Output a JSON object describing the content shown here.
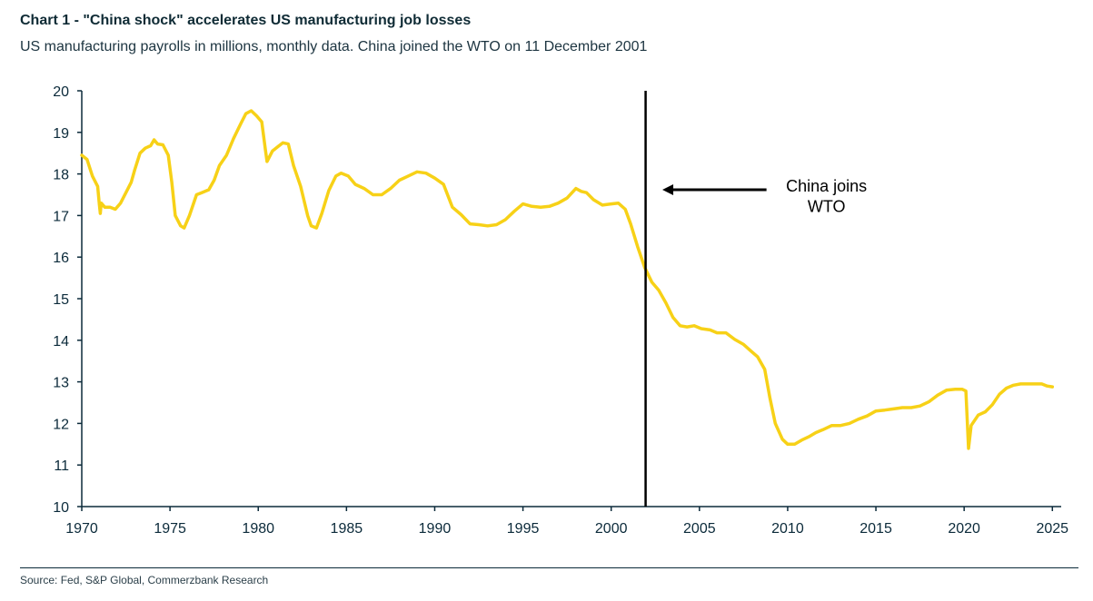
{
  "header": {
    "title": "Chart 1 - \"China shock\" accelerates US manufacturing job losses",
    "subtitle": "US manufacturing payrolls in millions, monthly data. China joined the WTO on 11 December 2001"
  },
  "footer": {
    "source": "Source: Fed, S&P Global, Commerzbank Research"
  },
  "chart_data": {
    "type": "line",
    "title": "Chart 1 - \"China shock\" accelerates US manufacturing job losses",
    "subtitle": "US manufacturing payrolls in millions, monthly data. China joined the WTO on 11 December 2001",
    "xlabel": "",
    "ylabel": "",
    "xlim": [
      1970,
      2025.5
    ],
    "ylim": [
      10,
      20
    ],
    "x_ticks": [
      "1970",
      "1975",
      "1980",
      "1985",
      "1990",
      "1995",
      "2000",
      "2005",
      "2010",
      "2015",
      "2020",
      "2025"
    ],
    "y_ticks": [
      "10",
      "11",
      "12",
      "13",
      "14",
      "15",
      "16",
      "17",
      "18",
      "19",
      "20"
    ],
    "grid": false,
    "line_color": "#f7d117",
    "series": [
      {
        "points": [
          [
            1970.0,
            18.45
          ],
          [
            1970.3,
            18.35
          ],
          [
            1970.6,
            17.95
          ],
          [
            1970.9,
            17.7
          ],
          [
            1971.0,
            17.25
          ],
          [
            1971.05,
            17.05
          ],
          [
            1971.1,
            17.3
          ],
          [
            1971.3,
            17.2
          ],
          [
            1971.6,
            17.2
          ],
          [
            1971.9,
            17.15
          ],
          [
            1972.2,
            17.3
          ],
          [
            1972.5,
            17.55
          ],
          [
            1972.8,
            17.8
          ],
          [
            1973.0,
            18.1
          ],
          [
            1973.3,
            18.5
          ],
          [
            1973.6,
            18.62
          ],
          [
            1973.9,
            18.68
          ],
          [
            1974.1,
            18.82
          ],
          [
            1974.3,
            18.72
          ],
          [
            1974.6,
            18.7
          ],
          [
            1974.9,
            18.45
          ],
          [
            1975.1,
            17.8
          ],
          [
            1975.3,
            17.0
          ],
          [
            1975.6,
            16.75
          ],
          [
            1975.8,
            16.7
          ],
          [
            1976.1,
            17.0
          ],
          [
            1976.5,
            17.5
          ],
          [
            1976.8,
            17.55
          ],
          [
            1977.2,
            17.62
          ],
          [
            1977.5,
            17.85
          ],
          [
            1977.8,
            18.2
          ],
          [
            1978.2,
            18.45
          ],
          [
            1978.6,
            18.85
          ],
          [
            1979.0,
            19.2
          ],
          [
            1979.3,
            19.45
          ],
          [
            1979.6,
            19.52
          ],
          [
            1979.9,
            19.4
          ],
          [
            1980.2,
            19.25
          ],
          [
            1980.4,
            18.6
          ],
          [
            1980.5,
            18.3
          ],
          [
            1980.8,
            18.55
          ],
          [
            1981.1,
            18.65
          ],
          [
            1981.4,
            18.75
          ],
          [
            1981.7,
            18.72
          ],
          [
            1982.0,
            18.2
          ],
          [
            1982.4,
            17.7
          ],
          [
            1982.8,
            17.0
          ],
          [
            1983.0,
            16.75
          ],
          [
            1983.3,
            16.7
          ],
          [
            1983.6,
            17.05
          ],
          [
            1984.0,
            17.6
          ],
          [
            1984.4,
            17.95
          ],
          [
            1984.7,
            18.02
          ],
          [
            1985.1,
            17.95
          ],
          [
            1985.5,
            17.75
          ],
          [
            1986.0,
            17.65
          ],
          [
            1986.5,
            17.5
          ],
          [
            1987.0,
            17.5
          ],
          [
            1987.5,
            17.65
          ],
          [
            1988.0,
            17.85
          ],
          [
            1988.5,
            17.95
          ],
          [
            1989.0,
            18.05
          ],
          [
            1989.5,
            18.02
          ],
          [
            1990.0,
            17.9
          ],
          [
            1990.5,
            17.75
          ],
          [
            1991.0,
            17.2
          ],
          [
            1991.5,
            17.02
          ],
          [
            1992.0,
            16.8
          ],
          [
            1992.5,
            16.78
          ],
          [
            1993.0,
            16.75
          ],
          [
            1993.5,
            16.78
          ],
          [
            1994.0,
            16.9
          ],
          [
            1994.5,
            17.1
          ],
          [
            1995.0,
            17.28
          ],
          [
            1995.5,
            17.22
          ],
          [
            1996.0,
            17.2
          ],
          [
            1996.5,
            17.22
          ],
          [
            1997.0,
            17.3
          ],
          [
            1997.5,
            17.42
          ],
          [
            1998.0,
            17.65
          ],
          [
            1998.3,
            17.58
          ],
          [
            1998.6,
            17.55
          ],
          [
            1999.0,
            17.38
          ],
          [
            1999.5,
            17.25
          ],
          [
            2000.0,
            17.28
          ],
          [
            2000.4,
            17.3
          ],
          [
            2000.8,
            17.15
          ],
          [
            2001.1,
            16.8
          ],
          [
            2001.5,
            16.25
          ],
          [
            2001.9,
            15.75
          ],
          [
            2002.3,
            15.4
          ],
          [
            2002.7,
            15.2
          ],
          [
            2003.1,
            14.9
          ],
          [
            2003.5,
            14.55
          ],
          [
            2003.9,
            14.35
          ],
          [
            2004.3,
            14.32
          ],
          [
            2004.7,
            14.35
          ],
          [
            2005.1,
            14.28
          ],
          [
            2005.6,
            14.25
          ],
          [
            2006.0,
            14.18
          ],
          [
            2006.5,
            14.18
          ],
          [
            2007.0,
            14.02
          ],
          [
            2007.5,
            13.9
          ],
          [
            2007.9,
            13.75
          ],
          [
            2008.3,
            13.6
          ],
          [
            2008.7,
            13.3
          ],
          [
            2009.0,
            12.6
          ],
          [
            2009.3,
            12.0
          ],
          [
            2009.7,
            11.62
          ],
          [
            2010.0,
            11.5
          ],
          [
            2010.4,
            11.5
          ],
          [
            2010.8,
            11.6
          ],
          [
            2011.2,
            11.68
          ],
          [
            2011.6,
            11.78
          ],
          [
            2012.0,
            11.85
          ],
          [
            2012.5,
            11.95
          ],
          [
            2013.0,
            11.95
          ],
          [
            2013.5,
            12.0
          ],
          [
            2014.0,
            12.1
          ],
          [
            2014.5,
            12.18
          ],
          [
            2015.0,
            12.3
          ],
          [
            2015.5,
            12.32
          ],
          [
            2016.0,
            12.35
          ],
          [
            2016.5,
            12.38
          ],
          [
            2017.0,
            12.38
          ],
          [
            2017.5,
            12.42
          ],
          [
            2018.0,
            12.52
          ],
          [
            2018.5,
            12.68
          ],
          [
            2019.0,
            12.8
          ],
          [
            2019.5,
            12.82
          ],
          [
            2019.9,
            12.82
          ],
          [
            2020.1,
            12.78
          ],
          [
            2020.25,
            11.4
          ],
          [
            2020.4,
            11.95
          ],
          [
            2020.8,
            12.2
          ],
          [
            2021.2,
            12.28
          ],
          [
            2021.6,
            12.45
          ],
          [
            2022.0,
            12.7
          ],
          [
            2022.4,
            12.85
          ],
          [
            2022.8,
            12.92
          ],
          [
            2023.2,
            12.95
          ],
          [
            2023.6,
            12.95
          ],
          [
            2024.0,
            12.95
          ],
          [
            2024.4,
            12.95
          ],
          [
            2024.7,
            12.9
          ],
          [
            2025.0,
            12.88
          ]
        ]
      }
    ],
    "marker": {
      "x": 2001.95
    },
    "annotation": {
      "line1": "China joins",
      "line2": "WTO",
      "arrow_from": [
        2008.8,
        17.62
      ],
      "arrow_to": [
        2002.9,
        17.62
      ],
      "text_x": 2012.2,
      "text_y1": 17.58,
      "text_y2": 17.08
    }
  }
}
